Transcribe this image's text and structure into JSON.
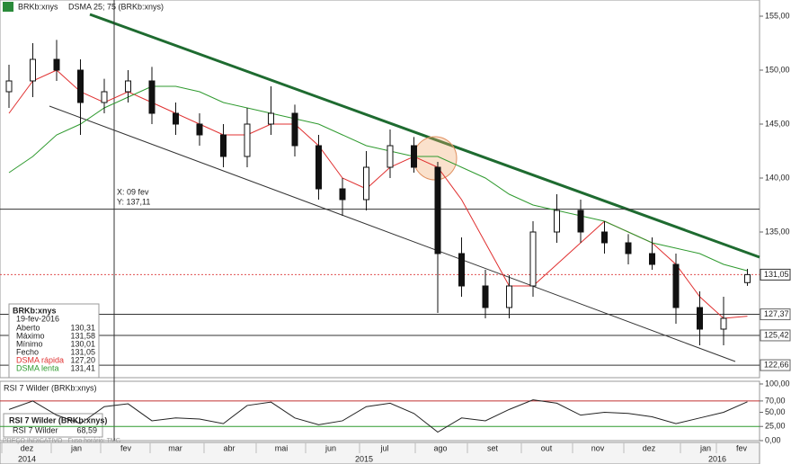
{
  "chart_data": {
    "type": "candlestick",
    "header": [
      "BRKb:xnys",
      "DSMA 25; 75 (BRKb:xnys)"
    ],
    "categories": [
      null,
      null,
      null,
      null,
      null,
      null,
      null,
      null,
      null,
      null,
      null,
      null,
      null,
      null,
      null,
      null,
      null,
      null,
      null,
      null,
      null,
      null,
      null,
      null,
      null,
      null,
      null,
      null,
      null,
      null,
      null,
      null
    ],
    "open": [
      148,
      149,
      151,
      150,
      147,
      148,
      149,
      146,
      145,
      144,
      142,
      145,
      146,
      143,
      139,
      138,
      141,
      143,
      141,
      133,
      130,
      128,
      130,
      135,
      137,
      135,
      134,
      133,
      132,
      128,
      126,
      130.31
    ],
    "high": [
      150.5,
      152.5,
      152.8,
      151,
      149.2,
      150,
      150.3,
      147,
      146,
      145,
      146.5,
      148.5,
      146.8,
      144,
      140,
      142.5,
      144.5,
      143.8,
      141.5,
      134.5,
      131.5,
      131,
      136,
      138.5,
      138,
      136,
      134.8,
      134.5,
      133,
      129.5,
      129,
      131.58
    ],
    "low": [
      146.5,
      147.5,
      149,
      144,
      146,
      147,
      145,
      144,
      143,
      141,
      141,
      144,
      142,
      138,
      136.5,
      137,
      140,
      140.5,
      127.5,
      129,
      127,
      127,
      129,
      134,
      134,
      133,
      132,
      131.5,
      126.5,
      124.5,
      124.5,
      130.01
    ],
    "close": [
      149,
      151,
      150,
      147,
      148,
      149,
      146,
      145,
      144,
      142,
      145,
      146,
      143,
      139,
      138,
      141,
      143,
      141,
      133,
      130,
      128,
      130,
      135,
      137,
      135,
      134,
      133,
      132,
      128,
      126,
      127,
      131.05
    ],
    "series": [
      {
        "name": "DSMA rápida",
        "color": "#e03030",
        "values": [
          146,
          149,
          150,
          148,
          147,
          148,
          147,
          146,
          145,
          144,
          144,
          145,
          145,
          143,
          140,
          139,
          141,
          142,
          141,
          138,
          134,
          130,
          130,
          132,
          134,
          136,
          135,
          134,
          132,
          129,
          127,
          127.2
        ]
      },
      {
        "name": "DSMA lenta",
        "color": "#2f9a2f",
        "values": [
          140.5,
          142,
          144,
          145,
          146.5,
          147.5,
          148.5,
          148.5,
          148,
          147,
          146.5,
          146,
          145.5,
          145,
          144,
          143,
          142.5,
          142,
          142,
          141,
          140,
          138.5,
          137.5,
          137,
          136.5,
          136,
          135,
          134,
          133.5,
          133,
          132,
          131.41
        ]
      }
    ],
    "ylim": [
      121.5,
      156.5
    ],
    "yticks": [
      {
        "value": 135,
        "label": "135,00"
      },
      {
        "value": 140,
        "label": "140,00"
      },
      {
        "value": 145,
        "label": "145,00"
      },
      {
        "value": 150,
        "label": "150,00"
      },
      {
        "value": 155,
        "label": "155,00"
      }
    ],
    "last": {
      "value": 131.05,
      "label": "131,05"
    },
    "levels": [
      {
        "value": 127.37,
        "label": "127,37"
      },
      {
        "value": 125.42,
        "label": "125,42"
      },
      {
        "value": 122.66,
        "label": "122,66"
      }
    ],
    "crosshair": {
      "x": "X: 09 fev",
      "y": {
        "value": 137.11,
        "label": "Y: 137,11"
      }
    },
    "info": {
      "title": "BRKb:xnys",
      "date": "19-fev-2016",
      "rows": [
        [
          "Aberto",
          "130,31"
        ],
        [
          "Máximo",
          "131,58"
        ],
        [
          "Mínimo",
          "130,01"
        ],
        [
          "Fecho",
          "131,05"
        ],
        [
          "DSMA rápida",
          "127,20"
        ],
        [
          "DSMA lenta",
          "131,41"
        ]
      ]
    },
    "rsi": {
      "title": "RSI 7 Wilder (BRKb:xnys)",
      "box_title": "RSI 7 Wilder (BRKb:xnys)",
      "box_label": "RSI 7 Wilder",
      "box_value": "68,59",
      "color": "#222",
      "values": [
        55,
        70,
        45,
        30,
        60,
        65,
        35,
        40,
        38,
        30,
        62,
        68,
        40,
        28,
        35,
        60,
        66,
        48,
        15,
        40,
        35,
        55,
        72,
        66,
        45,
        50,
        48,
        42,
        30,
        40,
        50,
        68.59
      ],
      "ylim": [
        0,
        100
      ],
      "yticks": [
        {
          "value": 0,
          "label": "0,00"
        },
        {
          "value": 25,
          "label": "25,00"
        },
        {
          "value": 50,
          "label": "50,00"
        },
        {
          "value": 70,
          "label": "70,00"
        },
        {
          "value": 100,
          "label": "100,00"
        }
      ],
      "levels": [
        {
          "value": 70,
          "color": "#c03030"
        },
        {
          "value": 25,
          "color": "#2f9a2f"
        }
      ]
    },
    "months": [
      "dez",
      "jan",
      "fev",
      "mar",
      "abr",
      "mai",
      "jun",
      "jul",
      "ago",
      "set",
      "out",
      "nov",
      "dez",
      "jan",
      "fev"
    ],
    "years": [
      "2014",
      "2015",
      "2016"
    ],
    "footer": "PREÇO INDICATIVO · Fuso horário: TMG"
  }
}
